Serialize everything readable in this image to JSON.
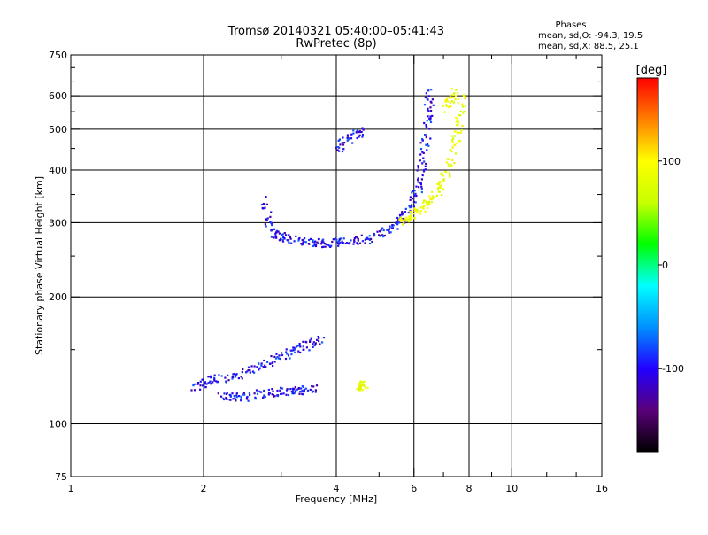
{
  "chart_data": {
    "type": "scatter",
    "title": "Tromsø 20140321 05:40:00–05:41:43",
    "subtitle": "RwPretec (8p)",
    "xlabel": "Frequency [MHz]",
    "ylabel": "Stationary phase Virtual Height [km]",
    "x_scale": "log",
    "y_scale": "log",
    "xlim": [
      1,
      16
    ],
    "ylim": [
      75,
      750
    ],
    "x_ticks": [
      1,
      2,
      4,
      6,
      8,
      10,
      16
    ],
    "x_tick_labels": [
      "1",
      "2",
      "4",
      "6",
      "8",
      "10",
      "16"
    ],
    "x_minor_ticks": [
      3,
      5,
      7,
      9,
      12,
      14
    ],
    "y_ticks": [
      75,
      100,
      200,
      300,
      400,
      500,
      600,
      750
    ],
    "y_tick_labels": [
      "75",
      "100",
      "200",
      "300",
      "400",
      "500",
      "600",
      "750"
    ],
    "y_minor_ticks": [
      150,
      250,
      350,
      450,
      550,
      650,
      700
    ],
    "grid": true,
    "stats_box": {
      "heading": "Phases",
      "line1": "mean, sd,O: -94.3, 19.5",
      "line2": "mean, sd,X:  88.5, 25.1"
    },
    "colorbar": {
      "label": "[deg]",
      "min": -180,
      "max": 180,
      "ticks": [
        100,
        0,
        -100
      ],
      "tick_labels": [
        "100",
        "0",
        "-100"
      ],
      "colormap": [
        "#000000",
        "#5a007a",
        "#2200ff",
        "#0090ff",
        "#00ffff",
        "#00ff00",
        "#c8ff00",
        "#ffff00",
        "#ff8000",
        "#ff0000"
      ]
    },
    "series": [
      {
        "traces": [
          {
            "x": [
              2.75,
              2.8,
              2.9,
              3.0,
              3.2,
              3.4,
              3.6,
              3.8,
              4.0,
              4.3,
              4.6,
              4.9,
              5.2,
              5.5,
              5.7,
              5.9,
              6.1,
              6.2,
              6.3,
              6.4,
              6.45,
              6.5
            ],
            "y": [
              340,
              300,
              285,
              278,
              274,
              272,
              270,
              270,
              271,
              272,
              275,
              280,
              288,
              300,
              315,
              335,
              365,
              400,
              450,
              510,
              570,
              630
            ]
          },
          {
            "x": [
              2.2,
              2.3,
              2.4,
              2.6,
              2.8,
              3.0,
              3.2,
              3.4,
              3.6
            ],
            "y": [
              117,
              116,
              116,
              118,
              119,
              120,
              120,
              121,
              121
            ]
          },
          {
            "x": [
              1.9,
              2.0,
              2.1,
              2.3,
              2.5,
              2.7,
              2.9,
              3.1,
              3.3,
              3.5,
              3.7
            ],
            "y": [
              122,
              125,
              128,
              130,
              134,
              138,
              143,
              148,
              152,
              156,
              160
            ]
          },
          {
            "x": [
              4.0,
              4.2,
              4.4,
              4.6
            ],
            "y": [
              450,
              470,
              490,
              500
            ]
          }
        ],
        "color_range_deg": [
          -130,
          -70
        ]
      },
      {
        "traces": [
          {
            "x": [
              5.6,
              5.8,
              6.0,
              6.3,
              6.6,
              6.9,
              7.1,
              7.3,
              7.5,
              7.6,
              7.7
            ],
            "y": [
              300,
              310,
              318,
              330,
              345,
              370,
              400,
              440,
              490,
              540,
              600
            ]
          },
          {
            "x": [
              7.0,
              7.2,
              7.4
            ],
            "y": [
              560,
              590,
              620
            ]
          },
          {
            "x": [
              4.5,
              4.55,
              4.6
            ],
            "y": [
              123,
              124,
              125
            ]
          }
        ],
        "color_range_deg": [
          60,
          110
        ]
      }
    ]
  }
}
